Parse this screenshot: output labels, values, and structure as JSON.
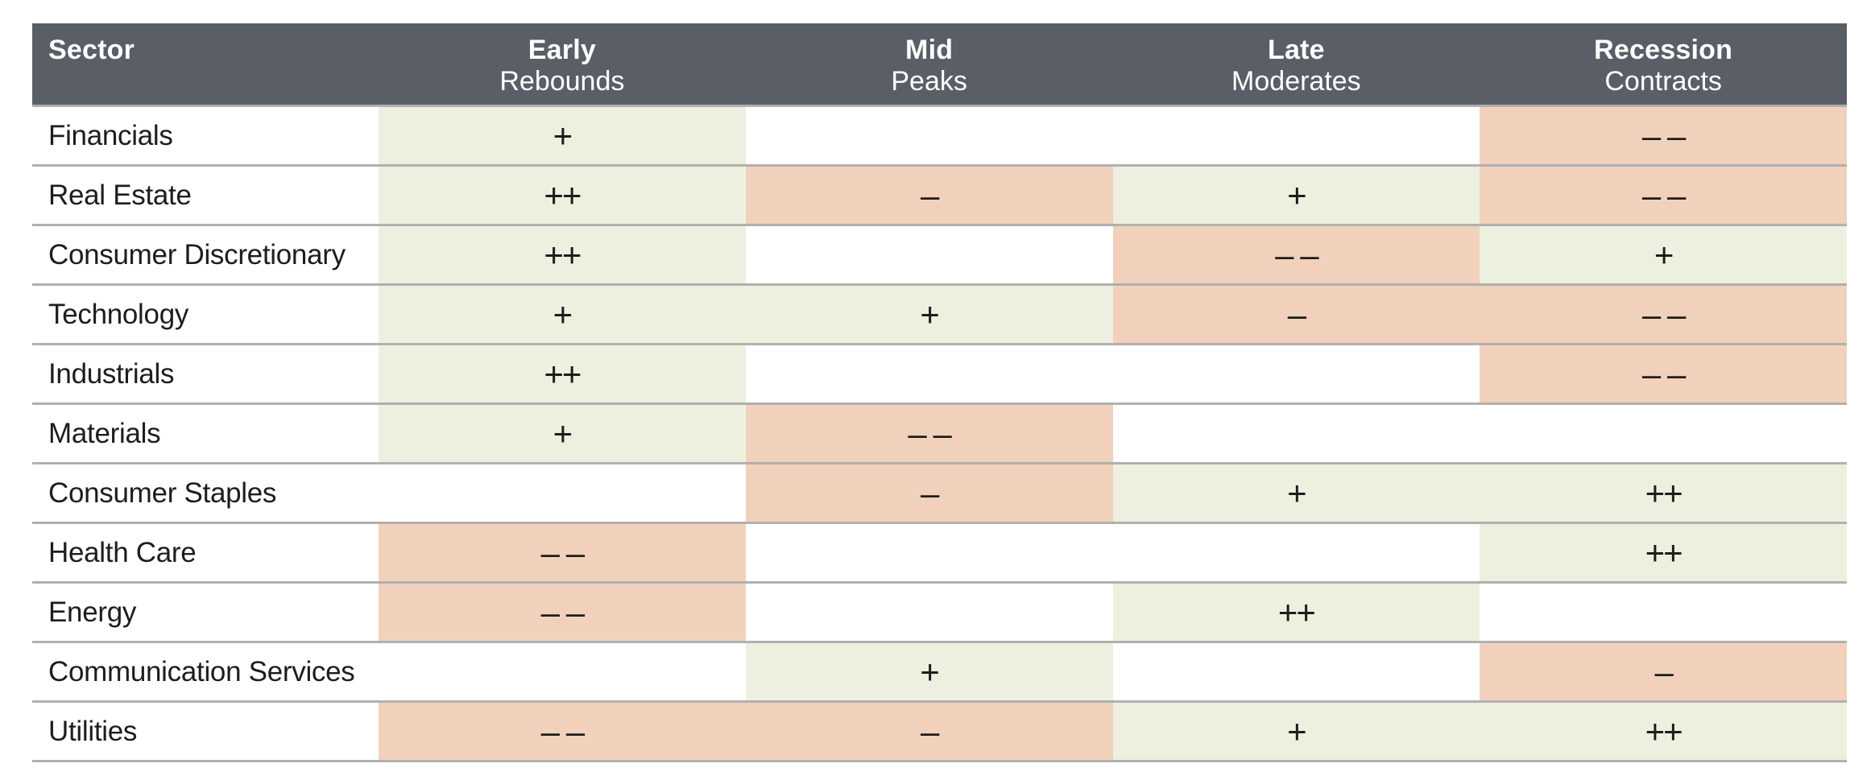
{
  "chart_data": {
    "type": "table",
    "columns": [
      "Sector",
      "Early Rebounds",
      "Mid Peaks",
      "Late Moderates",
      "Recession Contracts"
    ],
    "rows": [
      [
        "Financials",
        "+",
        "",
        "",
        "– –"
      ],
      [
        "Real Estate",
        "++",
        "–",
        "+",
        "– –"
      ],
      [
        "Consumer Discretionary",
        "++",
        "",
        "– –",
        "+"
      ],
      [
        "Technology",
        "+",
        "+",
        "–",
        "– –"
      ],
      [
        "Industrials",
        "++",
        "",
        "",
        "– –"
      ],
      [
        "Materials",
        "+",
        "– –",
        "",
        ""
      ],
      [
        "Consumer Staples",
        "",
        "–",
        "+",
        "++"
      ],
      [
        "Health Care",
        "– –",
        "",
        "",
        "++"
      ],
      [
        "Energy",
        "– –",
        "",
        "++",
        ""
      ],
      [
        "Communication Services",
        "",
        "+",
        "",
        "–"
      ],
      [
        "Utilities",
        "– –",
        "–",
        "+",
        "++"
      ]
    ],
    "legend_position": "none",
    "grid": "horizontal-lines"
  },
  "table": {
    "colors": {
      "header_bg": "#5a5e66",
      "header_text": "#ffffff",
      "pos_bg": "#edf0df",
      "neg_bg": "#f1d1bb",
      "line": "#b0b0b0",
      "text": "#1d1d1d"
    },
    "header": {
      "sector_label": "Sector",
      "phases": [
        {
          "title": "Early",
          "subtitle": "Rebounds"
        },
        {
          "title": "Mid",
          "subtitle": "Peaks"
        },
        {
          "title": "Late",
          "subtitle": "Moderates"
        },
        {
          "title": "Recession",
          "subtitle": "Contracts"
        }
      ]
    },
    "rows": [
      {
        "sector": "Financials",
        "cells": [
          {
            "value": "+",
            "tone": "pos"
          },
          {
            "value": "",
            "tone": "none"
          },
          {
            "value": "",
            "tone": "none"
          },
          {
            "value": "– –",
            "tone": "neg"
          }
        ]
      },
      {
        "sector": "Real Estate",
        "cells": [
          {
            "value": "++",
            "tone": "pos"
          },
          {
            "value": "–",
            "tone": "neg"
          },
          {
            "value": "+",
            "tone": "pos"
          },
          {
            "value": "– –",
            "tone": "neg"
          }
        ]
      },
      {
        "sector": "Consumer Discretionary",
        "cells": [
          {
            "value": "++",
            "tone": "pos"
          },
          {
            "value": "",
            "tone": "none"
          },
          {
            "value": "– –",
            "tone": "neg"
          },
          {
            "value": "+",
            "tone": "pos"
          }
        ]
      },
      {
        "sector": "Technology",
        "cells": [
          {
            "value": "+",
            "tone": "pos"
          },
          {
            "value": "+",
            "tone": "pos"
          },
          {
            "value": "–",
            "tone": "neg"
          },
          {
            "value": "– –",
            "tone": "neg"
          }
        ]
      },
      {
        "sector": "Industrials",
        "cells": [
          {
            "value": "++",
            "tone": "pos"
          },
          {
            "value": "",
            "tone": "none"
          },
          {
            "value": "",
            "tone": "none"
          },
          {
            "value": "– –",
            "tone": "neg"
          }
        ]
      },
      {
        "sector": "Materials",
        "cells": [
          {
            "value": "+",
            "tone": "pos"
          },
          {
            "value": "– –",
            "tone": "neg"
          },
          {
            "value": "",
            "tone": "none"
          },
          {
            "value": "",
            "tone": "none"
          }
        ]
      },
      {
        "sector": "Consumer Staples",
        "cells": [
          {
            "value": "",
            "tone": "none"
          },
          {
            "value": "–",
            "tone": "neg"
          },
          {
            "value": "+",
            "tone": "pos"
          },
          {
            "value": "++",
            "tone": "pos"
          }
        ]
      },
      {
        "sector": "Health Care",
        "cells": [
          {
            "value": "– –",
            "tone": "neg"
          },
          {
            "value": "",
            "tone": "none"
          },
          {
            "value": "",
            "tone": "none"
          },
          {
            "value": "++",
            "tone": "pos"
          }
        ]
      },
      {
        "sector": "Energy",
        "cells": [
          {
            "value": "– –",
            "tone": "neg"
          },
          {
            "value": "",
            "tone": "none"
          },
          {
            "value": "++",
            "tone": "pos"
          },
          {
            "value": "",
            "tone": "none"
          }
        ]
      },
      {
        "sector": "Communication Services",
        "cells": [
          {
            "value": "",
            "tone": "none"
          },
          {
            "value": "+",
            "tone": "pos"
          },
          {
            "value": "",
            "tone": "none"
          },
          {
            "value": "–",
            "tone": "neg"
          }
        ]
      },
      {
        "sector": "Utilities",
        "cells": [
          {
            "value": "– –",
            "tone": "neg"
          },
          {
            "value": "–",
            "tone": "neg"
          },
          {
            "value": "+",
            "tone": "pos"
          },
          {
            "value": "++",
            "tone": "pos"
          }
        ]
      }
    ]
  }
}
